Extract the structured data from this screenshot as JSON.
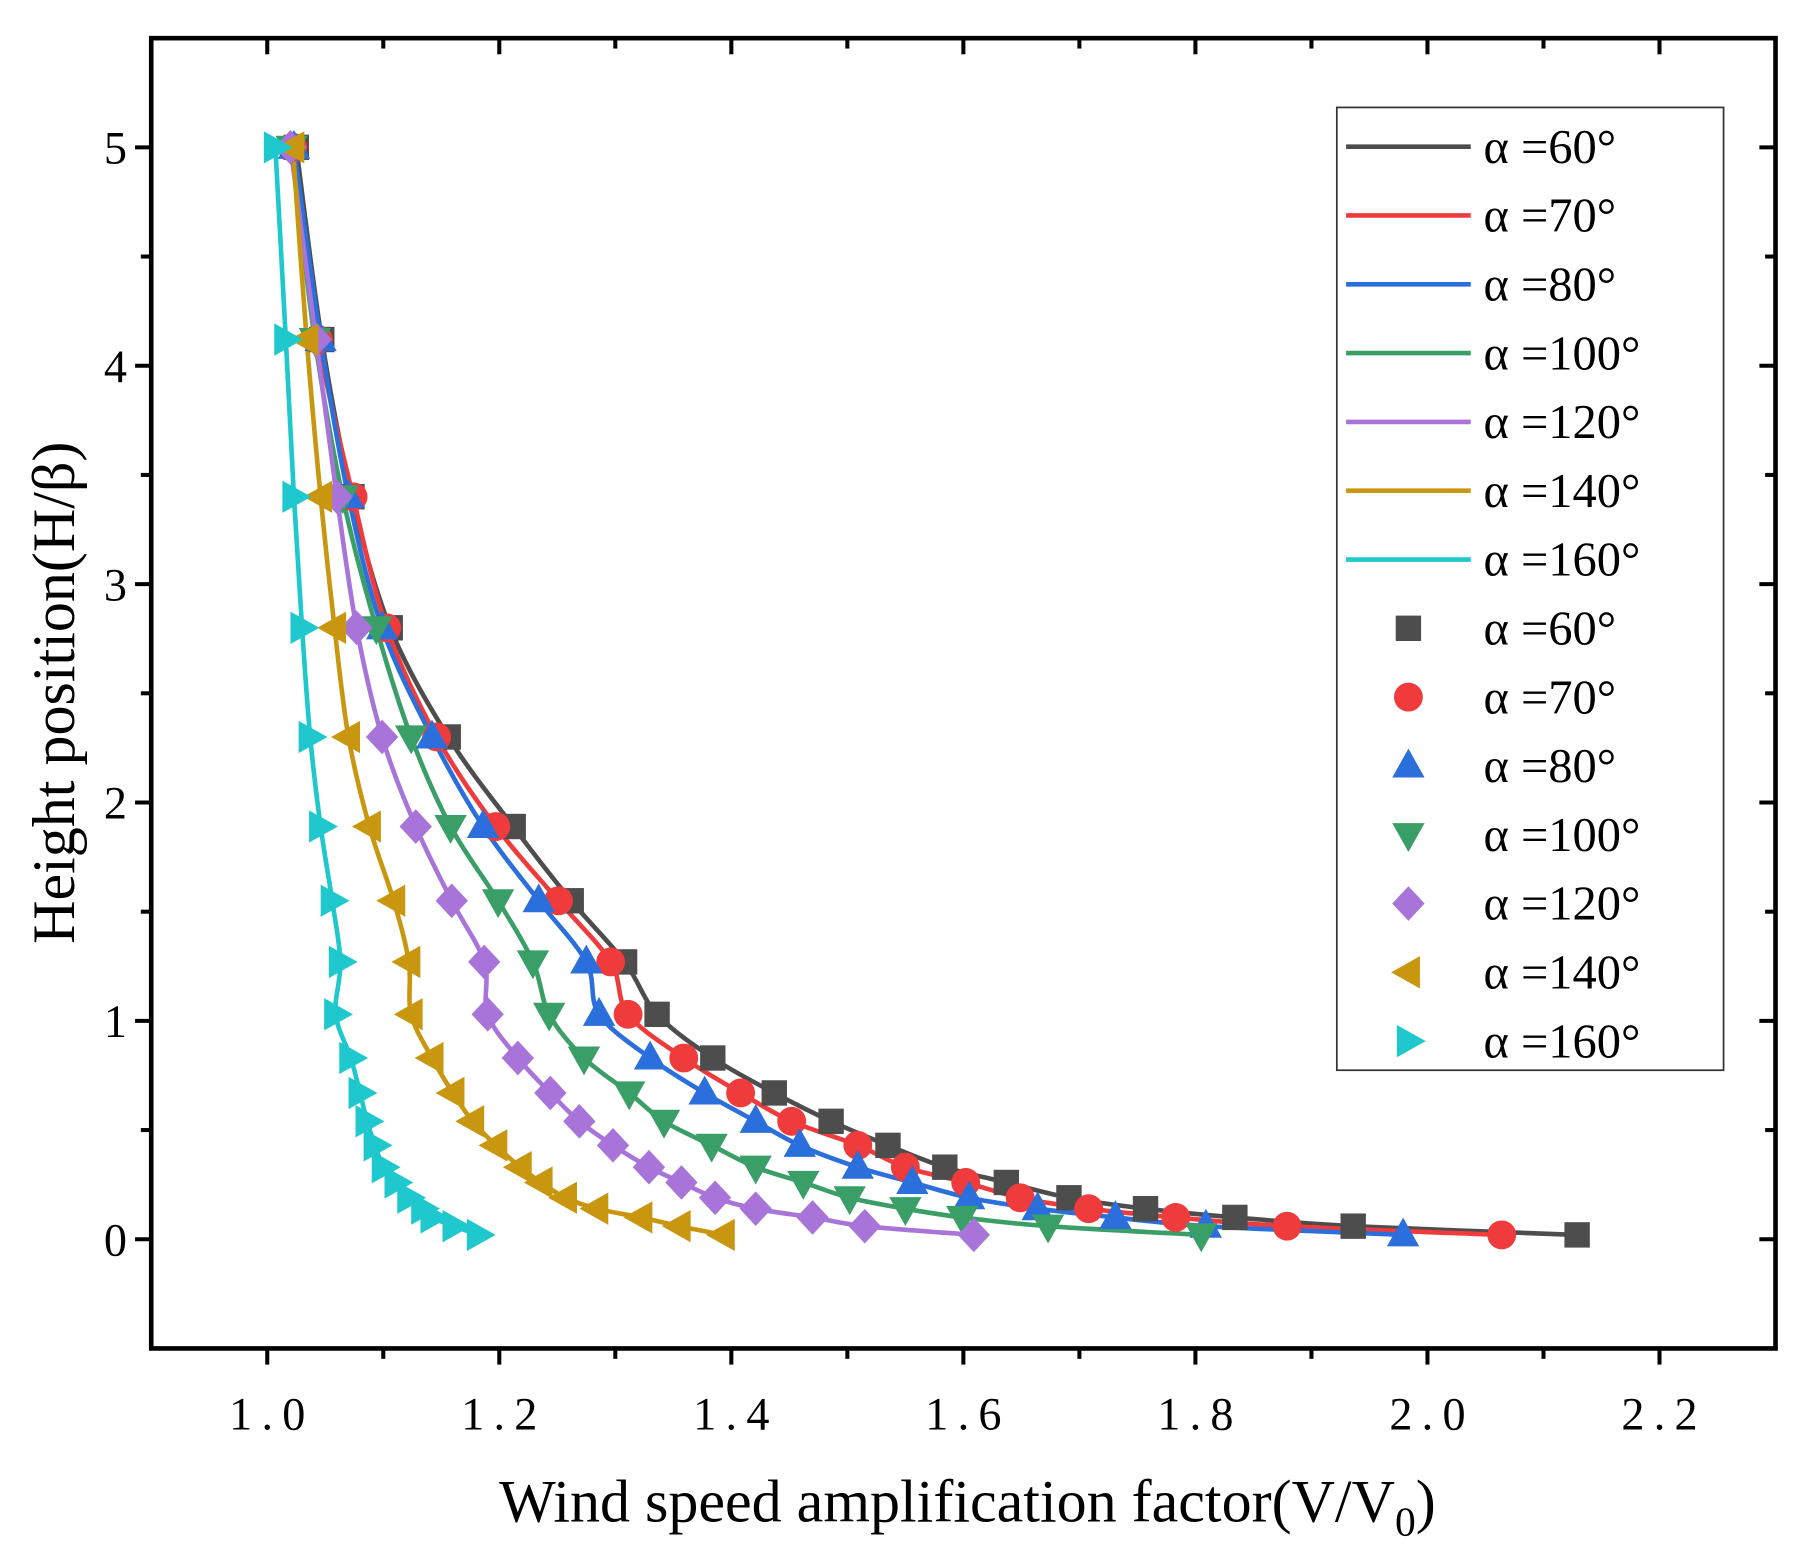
{
  "chart_data": {
    "type": "line",
    "title": "",
    "xlabel": {
      "text": "Wind speed amplification factor(V/V",
      "subscript": "0",
      "suffix": ")"
    },
    "ylabel": "Height position(H/β)",
    "xlim": [
      0.9,
      2.3
    ],
    "ylim": [
      -0.5,
      5.5
    ],
    "x_ticks": [
      1.0,
      1.2,
      1.4,
      1.6,
      1.8,
      2.0,
      2.2
    ],
    "x_tick_labels": [
      "1.0",
      "1.2",
      "1.4",
      "1.6",
      "1.8",
      "2.0",
      "2.2"
    ],
    "x_minor_step": 0.1,
    "y_ticks": [
      0,
      1,
      2,
      3,
      4,
      5
    ],
    "y_tick_labels": [
      "0",
      "1",
      "2",
      "3",
      "4",
      "5"
    ],
    "y_minor_step": 0.5,
    "grid": false,
    "legend_position": "top-right",
    "y": [
      5.0,
      4.12,
      3.4,
      2.8,
      2.3,
      1.89,
      1.55,
      1.27,
      1.03,
      0.83,
      0.67,
      0.54,
      0.43,
      0.33,
      0.26,
      0.19,
      0.14,
      0.1,
      0.06,
      0.02
    ],
    "series": [
      {
        "name": "α =60°",
        "color": "#4d4d4d",
        "marker": "square",
        "x": [
          1.025,
          1.047,
          1.073,
          1.106,
          1.156,
          1.212,
          1.262,
          1.308,
          1.336,
          1.384,
          1.437,
          1.486,
          1.535,
          1.584,
          1.637,
          1.691,
          1.757,
          1.834,
          1.936,
          2.129
        ]
      },
      {
        "name": "α =70°",
        "color": "#ef3b3b",
        "marker": "circle",
        "x": [
          1.022,
          1.044,
          1.074,
          1.103,
          1.146,
          1.197,
          1.251,
          1.296,
          1.311,
          1.359,
          1.408,
          1.452,
          1.509,
          1.55,
          1.602,
          1.649,
          1.708,
          1.783,
          1.879,
          2.064
        ]
      },
      {
        "name": "α =80°",
        "color": "#2a6fdb",
        "marker": "triangle-up",
        "x": [
          1.023,
          1.046,
          1.07,
          1.099,
          1.142,
          1.186,
          1.234,
          1.275,
          1.286,
          1.33,
          1.377,
          1.421,
          1.459,
          1.509,
          1.556,
          1.605,
          1.664,
          1.731,
          1.809,
          1.979
        ]
      },
      {
        "name": "α =100°",
        "color": "#3a9f66",
        "marker": "triangle-down",
        "x": [
          1.021,
          1.041,
          1.065,
          1.094,
          1.124,
          1.158,
          1.199,
          1.229,
          1.243,
          1.273,
          1.312,
          1.342,
          1.383,
          1.421,
          1.462,
          1.502,
          1.55,
          1.599,
          1.673,
          1.805
        ]
      },
      {
        "name": "α =120°",
        "color": "#a874d9",
        "marker": "diamond",
        "x": [
          1.02,
          1.042,
          1.06,
          1.077,
          1.099,
          1.128,
          1.159,
          1.187,
          1.19,
          1.216,
          1.244,
          1.269,
          1.298,
          1.329,
          1.357,
          1.386,
          1.421,
          1.47,
          1.515,
          1.609
        ]
      },
      {
        "name": "α =140°",
        "color": "#c9960f",
        "marker": "triangle-left",
        "x": [
          1.022,
          1.034,
          1.046,
          1.058,
          1.07,
          1.088,
          1.109,
          1.122,
          1.124,
          1.142,
          1.16,
          1.177,
          1.197,
          1.218,
          1.236,
          1.257,
          1.284,
          1.322,
          1.355,
          1.393
        ]
      },
      {
        "name": "α =160°",
        "color": "#1ec8cc",
        "marker": "triangle-right",
        "x": [
          1.007,
          1.016,
          1.023,
          1.03,
          1.037,
          1.046,
          1.056,
          1.063,
          1.059,
          1.072,
          1.08,
          1.086,
          1.093,
          1.1,
          1.111,
          1.122,
          1.134,
          1.142,
          1.161,
          1.182
        ]
      }
    ]
  }
}
